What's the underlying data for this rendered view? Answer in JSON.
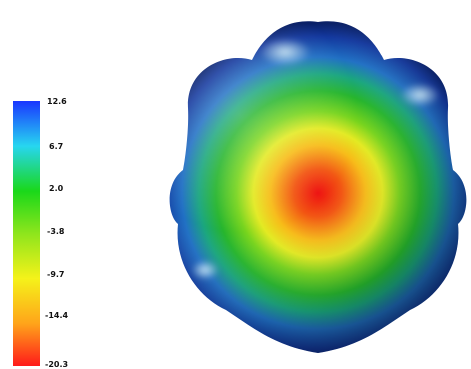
{
  "colorbar": {
    "labels": [
      "12.6",
      "6.7",
      "2.0",
      "-3.8",
      "-9.7",
      "-14.4",
      "-20.3"
    ],
    "colors": [
      "#1a36ff",
      "#27d6f0",
      "#1ad81a",
      "#8ee51c",
      "#f5f21a",
      "#ffa41a",
      "#ff1a1a"
    ]
  },
  "surface": {
    "center_color": "#ee1111",
    "rim_color": "#0a2b8c",
    "highlight_color": "#eaffff"
  }
}
